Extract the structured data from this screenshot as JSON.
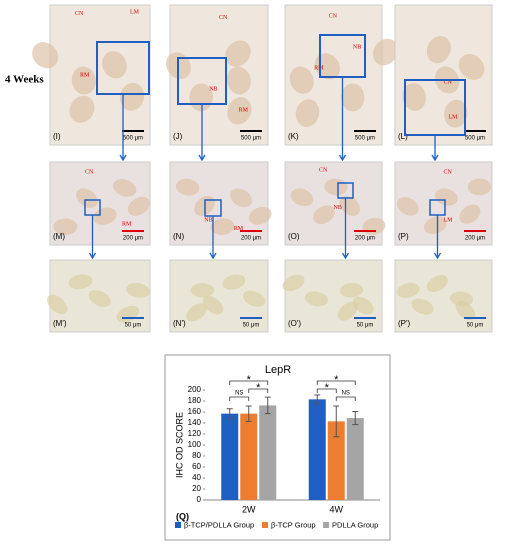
{
  "figure": {
    "row_label": "4 Weeks",
    "panels": [
      {
        "label": "(I)",
        "scale": "500 μm",
        "annotations": [
          "CN",
          "LM",
          "RM"
        ]
      },
      {
        "label": "(J)",
        "scale": "500 μm",
        "annotations": [
          "CN",
          "NB",
          "RM"
        ]
      },
      {
        "label": "(K)",
        "scale": "500 μm",
        "annotations": [
          "CN",
          "NB",
          "RM"
        ]
      },
      {
        "label": "(L)",
        "scale": "500 μm",
        "annotations": [
          "CN",
          "LM"
        ]
      },
      {
        "label": "(M)",
        "scale": "200 μm",
        "annotations": [
          "CN",
          "RM"
        ]
      },
      {
        "label": "(N)",
        "scale": "200 μm",
        "annotations": [
          "NB",
          "RM"
        ]
      },
      {
        "label": "(O)",
        "scale": "200 μm",
        "annotations": [
          "CN",
          "NB"
        ]
      },
      {
        "label": "(P)",
        "scale": "200 μm",
        "annotations": [
          "CN",
          "LM"
        ]
      },
      {
        "label": "(M')",
        "scale": "50 μm",
        "annotations": []
      },
      {
        "label": "(N')",
        "scale": "50 μm",
        "annotations": []
      },
      {
        "label": "(O')",
        "scale": "50 μm",
        "annotations": []
      },
      {
        "label": "(P')",
        "scale": "50 μm",
        "annotations": []
      }
    ]
  },
  "chart_data": {
    "type": "bar",
    "title": "LepR",
    "panel_label": "(Q)",
    "y_label": "IHC OD SCORE",
    "categories": [
      "2W",
      "4W"
    ],
    "series": [
      {
        "name": "β-TCP/PDLLA Group",
        "color": "#1f5fc4",
        "values": [
          157,
          183
        ],
        "errors": [
          9,
          8
        ]
      },
      {
        "name": "β-TCP Group",
        "color": "#ed7d31",
        "values": [
          157,
          143
        ],
        "errors": [
          14,
          28
        ]
      },
      {
        "name": "PDLLA Group",
        "color": "#a5a5a5",
        "values": [
          172,
          149
        ],
        "errors": [
          15,
          12
        ]
      }
    ],
    "ylim": [
      0,
      200
    ],
    "yticks": [
      0,
      20,
      40,
      60,
      80,
      100,
      120,
      140,
      160,
      180,
      200
    ],
    "annotations": [
      "*",
      "*",
      "NS",
      "*",
      "*",
      "NS"
    ]
  }
}
